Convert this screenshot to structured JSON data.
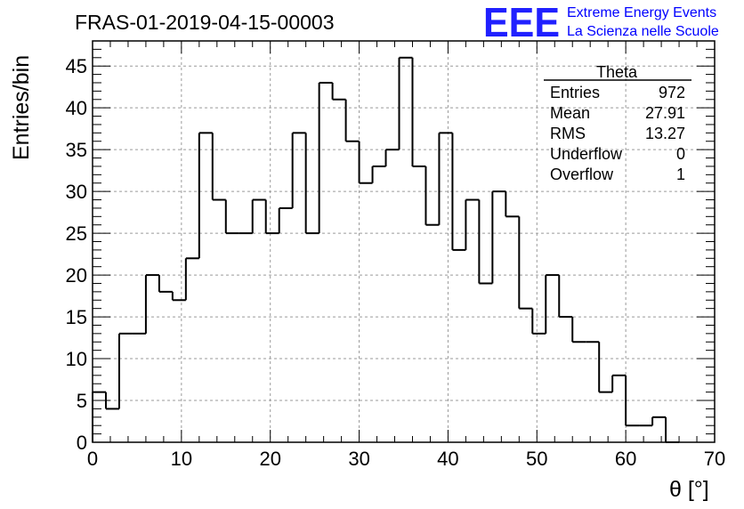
{
  "title": "FRAS-01-2019-04-15-00003",
  "logo": {
    "mark": "EEE",
    "line1": "Extreme Energy Events",
    "line2": "La Scienza nelle Scuole",
    "color": "#0000ff"
  },
  "stats": {
    "name": "Theta",
    "rows": [
      {
        "label": "Entries",
        "value": "972"
      },
      {
        "label": "Mean",
        "value": "27.91"
      },
      {
        "label": "RMS",
        "value": "13.27"
      },
      {
        "label": "Underflow",
        "value": "0"
      },
      {
        "label": "Overflow",
        "value": "1"
      }
    ]
  },
  "chart_data": {
    "type": "bar",
    "style": "step-histogram",
    "xlabel": "θ [°]",
    "ylabel": "Entries/bin",
    "xlim": [
      0,
      70
    ],
    "ylim": [
      0,
      48
    ],
    "bin_width": 1.5,
    "bin_start": 0,
    "grid": true,
    "xticks": [
      0,
      10,
      20,
      30,
      40,
      50,
      60,
      70
    ],
    "yticks": [
      0,
      5,
      10,
      15,
      20,
      25,
      30,
      35,
      40,
      45
    ],
    "values": [
      6,
      4,
      13,
      13,
      20,
      18,
      17,
      22,
      37,
      29,
      25,
      25,
      29,
      25,
      28,
      37,
      25,
      43,
      41,
      36,
      31,
      33,
      35,
      46,
      33,
      26,
      37,
      23,
      29,
      19,
      30,
      27,
      16,
      13,
      20,
      15,
      12,
      12,
      6,
      8,
      2,
      2,
      3,
      0
    ],
    "line_color": "#000000"
  }
}
